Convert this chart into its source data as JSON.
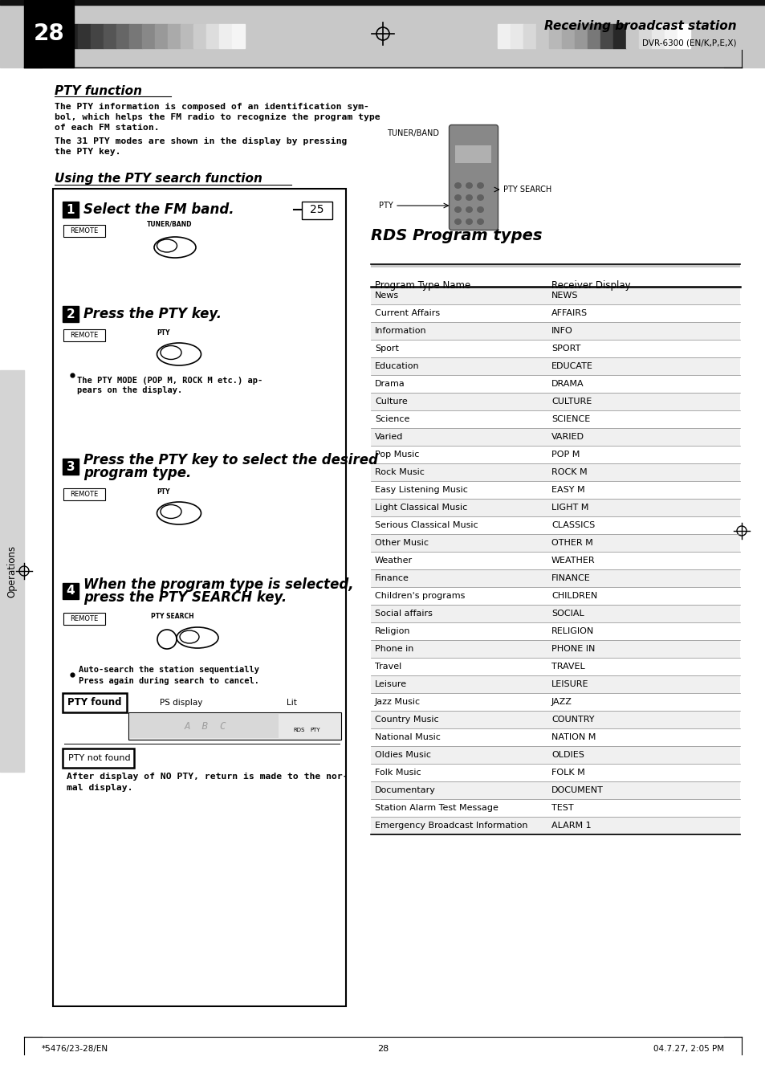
{
  "page_number": "28",
  "header_title": "Receiving broadcast station",
  "header_subtitle": "DVR-6300 (EN/K,P,E,X)",
  "section1_title": "PTY function",
  "section1_body1": "The PTY information is composed of an identification sym-\nbol, which helps the FM radio to recognize the program type\nof each FM station.",
  "section1_body2": "The 31 PTY modes are shown in the display by pressing\nthe PTY key.",
  "section2_title": "Using the PTY search function",
  "rds_title": "RDS Program types",
  "table_header": [
    "Program Type Name",
    "Receiver Display"
  ],
  "table_rows": [
    [
      "News",
      "NEWS"
    ],
    [
      "Current Affairs",
      "AFFAIRS"
    ],
    [
      "Information",
      "INFO"
    ],
    [
      "Sport",
      "SPORT"
    ],
    [
      "Education",
      "EDUCATE"
    ],
    [
      "Drama",
      "DRAMA"
    ],
    [
      "Culture",
      "CULTURE"
    ],
    [
      "Science",
      "SCIENCE"
    ],
    [
      "Varied",
      "VARIED"
    ],
    [
      "Pop Music",
      "POP M"
    ],
    [
      "Rock Music",
      "ROCK M"
    ],
    [
      "Easy Listening Music",
      "EASY M"
    ],
    [
      "Light Classical Music",
      "LIGHT M"
    ],
    [
      "Serious Classical Music",
      "CLASSICS"
    ],
    [
      "Other Music",
      "OTHER M"
    ],
    [
      "Weather",
      "WEATHER"
    ],
    [
      "Finance",
      "FINANCE"
    ],
    [
      "Children's programs",
      "CHILDREN"
    ],
    [
      "Social affairs",
      "SOCIAL"
    ],
    [
      "Religion",
      "RELIGION"
    ],
    [
      "Phone in",
      "PHONE IN"
    ],
    [
      "Travel",
      "TRAVEL"
    ],
    [
      "Leisure",
      "LEISURE"
    ],
    [
      "Jazz Music",
      "JAZZ"
    ],
    [
      "Country Music",
      "COUNTRY"
    ],
    [
      "National Music",
      "NATION M"
    ],
    [
      "Oldies Music",
      "OLDIES"
    ],
    [
      "Folk Music",
      "FOLK M"
    ],
    [
      "Documentary",
      "DOCUMENT"
    ],
    [
      "Station Alarm Test Message",
      "TEST"
    ],
    [
      "Emergency Broadcast Information",
      "ALARM 1"
    ]
  ],
  "footer_left": "*5476/23-28/EN",
  "footer_center": "28",
  "footer_right": "04.7.27, 2:05 PM",
  "strip_colors_left": [
    "#111111",
    "#222222",
    "#333333",
    "#444444",
    "#555555",
    "#666666",
    "#777777",
    "#888888",
    "#999999",
    "#aaaaaa",
    "#bbbbbb",
    "#cccccc",
    "#dddddd",
    "#eeeeee",
    "#f5f5f5"
  ],
  "strip_colors_right": [
    "#f0f0f0",
    "#e8e8e8",
    "#d8d8d8",
    "#c8c8c8",
    "#b8b8b8",
    "#a8a8a8",
    "#989898",
    "#787878",
    "#484848",
    "#282828",
    "#c8c8c8",
    "#d8d8d8",
    "#e8e8e8",
    "#f4f4f4",
    "#ffffff"
  ]
}
